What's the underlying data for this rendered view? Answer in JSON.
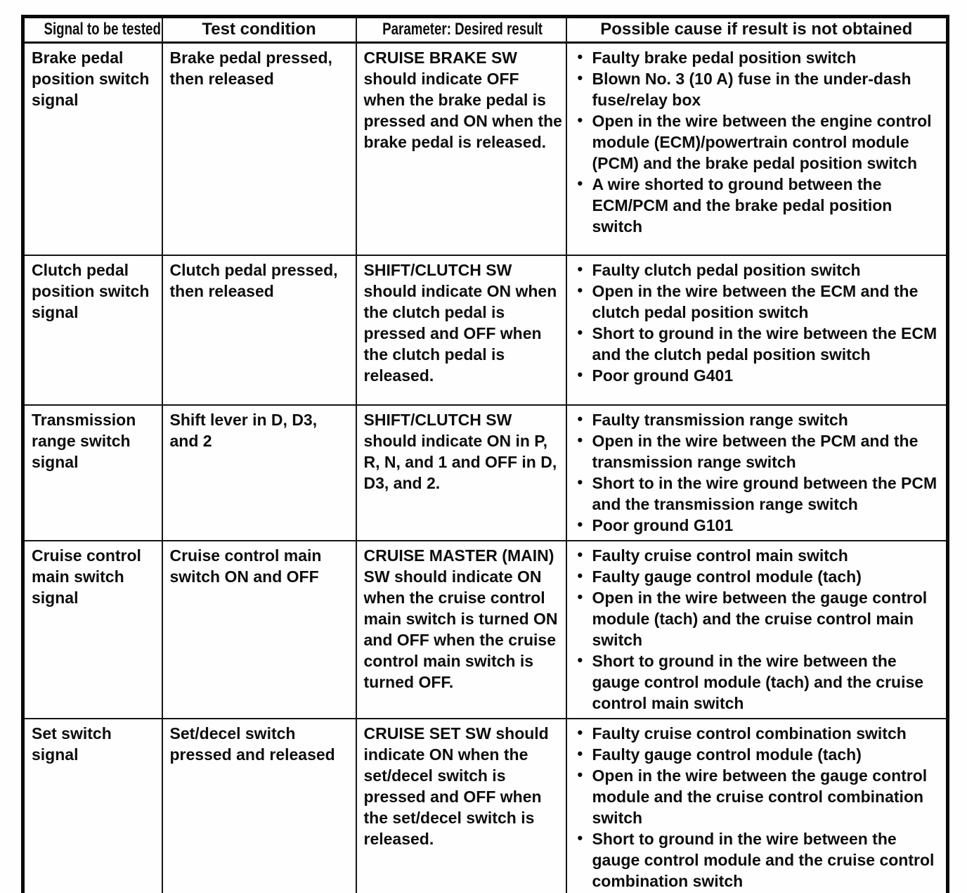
{
  "table": {
    "headers": [
      "Signal to be tested",
      "Test condition",
      "Parameter: Desired result",
      "Possible cause if result is not obtained"
    ],
    "rows": [
      {
        "signal": "Brake pedal position switch signal",
        "condition": "Brake pedal pressed, then released",
        "parameter": "CRUISE BRAKE SW should indicate OFF when the brake pedal is pressed and ON when the brake pedal is released.",
        "causes": [
          "Faulty brake pedal position switch",
          "Blown No. 3 (10 A) fuse in the under-dash fuse/relay box",
          "Open in the wire between the engine control module (ECM)/powertrain control module (PCM) and the brake pedal position switch",
          "A wire shorted to ground between the ECM/PCM and the brake pedal position switch"
        ]
      },
      {
        "signal": "Clutch pedal position switch signal",
        "condition": "Clutch pedal pressed, then released",
        "parameter": "SHIFT/CLUTCH SW should indicate ON when the clutch pedal is pressed and OFF when the clutch pedal is released.",
        "causes": [
          "Faulty clutch pedal position switch",
          "Open in the wire between the ECM and the clutch pedal position switch",
          "Short to ground in the wire between the ECM and the clutch pedal position switch",
          "Poor ground G401"
        ]
      },
      {
        "signal": "Transmission range switch signal",
        "condition": "Shift lever in D, D3, and 2",
        "parameter": "SHIFT/CLUTCH SW should indicate ON in P, R, N, and 1 and OFF in D, D3, and 2.",
        "causes": [
          "Faulty transmission range switch",
          "Open in the wire between the PCM and the transmission range switch",
          "Short to in the wire ground between the PCM and the transmission range switch",
          "Poor ground G101"
        ]
      },
      {
        "signal": "Cruise control main switch signal",
        "condition": "Cruise control main switch ON and OFF",
        "parameter": "CRUISE MASTER (MAIN) SW should indicate ON when the cruise control main switch is turned ON and OFF when the cruise control main switch is turned OFF.",
        "causes": [
          "Faulty cruise control main switch",
          "Faulty gauge control module (tach)",
          "Open in the wire between the gauge control module (tach) and the cruise control main switch",
          "Short to ground in the wire between the gauge control module (tach) and the cruise control main switch"
        ]
      },
      {
        "signal": "Set switch signal",
        "condition": "Set/decel switch pressed and released",
        "parameter": "CRUISE SET SW should indicate ON when the set/decel switch is pressed and OFF when the set/decel switch is released.",
        "causes": [
          "Faulty cruise control combination switch",
          "Faulty gauge control module (tach)",
          "Open in the wire between the gauge control module and the cruise control combination switch",
          "Short to ground in the wire between the gauge control module and the cruise control combination switch"
        ]
      }
    ]
  }
}
